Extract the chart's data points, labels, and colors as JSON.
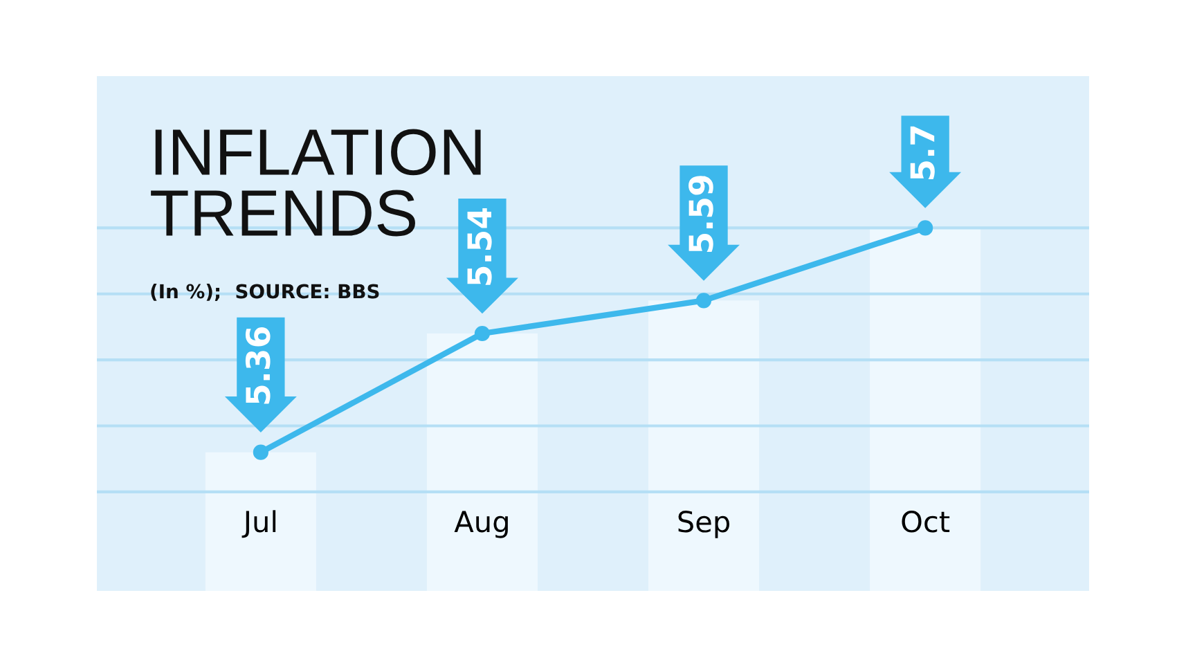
{
  "chart_data": {
    "type": "line",
    "title": "INFLATION\nTRENDS",
    "subtitle": "(In %);  SOURCE: BBS",
    "categories": [
      "Jul",
      "Aug",
      "Sep",
      "Oct"
    ],
    "series": [
      {
        "type": "bar",
        "color": "#eef8fe",
        "values": [
          5.36,
          5.54,
          5.59,
          5.7
        ]
      },
      {
        "color": "#3db8ec",
        "values": [
          5.36,
          5.54,
          5.59,
          5.7
        ],
        "value_labels": [
          "5.36",
          "5.54",
          "5.59",
          "5.7"
        ]
      }
    ],
    "marker": "circle",
    "line_style": "solid",
    "ylim": [
      5.15,
      5.93
    ],
    "yticks": [
      {
        "value": 5.3,
        "label": null
      },
      {
        "value": 5.4,
        "label": null
      },
      {
        "value": 5.5,
        "label": null
      },
      {
        "value": 5.6,
        "label": null
      },
      {
        "value": 5.7,
        "label": null
      }
    ],
    "grid": "y",
    "tick_labels": "x"
  }
}
